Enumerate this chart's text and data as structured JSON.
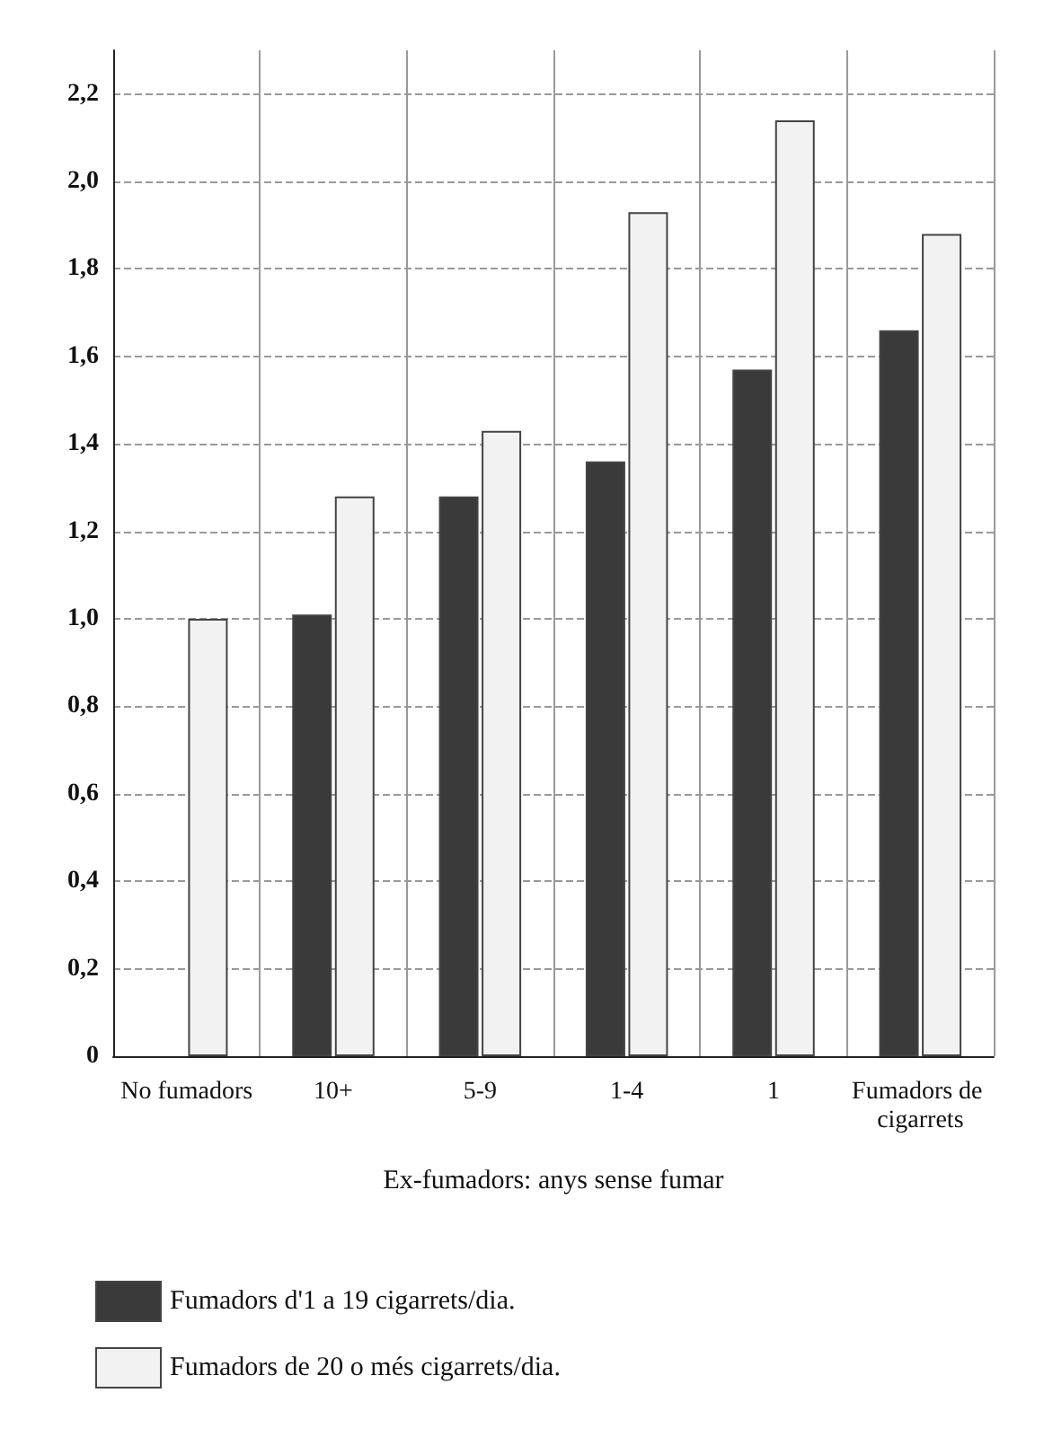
{
  "chart_data": {
    "type": "bar",
    "categories": [
      "No fumadors",
      "10+",
      "5-9",
      "1-4",
      "1",
      "Fumadors de cigarrets"
    ],
    "series": [
      {
        "name": "Fumadors d'1 a 19 cigarrets/dia.",
        "color": "#3a3a3a",
        "values": [
          null,
          1.01,
          1.28,
          1.36,
          1.57,
          1.66
        ]
      },
      {
        "name": "Fumadors de 20 o més cigarrets/dia.",
        "color": "#f2f2f2",
        "values": [
          1.0,
          1.28,
          1.43,
          1.93,
          2.14,
          1.88
        ]
      }
    ],
    "annotations": [
      "Ex-fumadors: anys sense fumar"
    ],
    "ylim": [
      0,
      2.3
    ],
    "yticks": [
      0,
      {
        "value": 0.2,
        "label": "0,2"
      },
      {
        "value": 0.4,
        "label": "0,4"
      },
      {
        "value": 0.6,
        "label": "0,6"
      },
      {
        "value": 0.8,
        "label": "0,8"
      },
      {
        "value": 1.0,
        "label": "1,0"
      },
      {
        "value": 1.2,
        "label": "1,2"
      },
      {
        "value": 1.4,
        "label": "1,4"
      },
      {
        "value": 1.6,
        "label": "1,6"
      },
      {
        "value": 1.8,
        "label": "1,8"
      },
      {
        "value": 2.0,
        "label": "2,0"
      },
      {
        "value": 2.2,
        "label": "2,2"
      }
    ],
    "grid": true,
    "legend": "bottom left"
  }
}
